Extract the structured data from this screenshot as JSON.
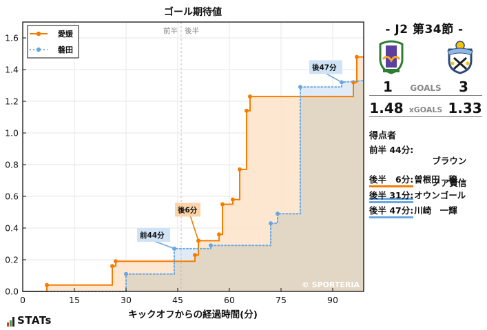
{
  "chart_data": {
    "type": "line",
    "step": true,
    "title": "ゴール期待値",
    "xlabel": "キックオフからの経過時間(分)",
    "ylabel": "",
    "xlim": [
      0,
      99
    ],
    "ylim": [
      0,
      1.7
    ],
    "xticks": [
      0,
      15,
      30,
      45,
      60,
      75,
      90
    ],
    "yticks": [
      0.0,
      0.2,
      0.4,
      0.6,
      0.8,
      1.0,
      1.2,
      1.4,
      1.6
    ],
    "grid": true,
    "legend_position": "upper left",
    "halftime_line": {
      "x": 46,
      "labels": [
        "前半",
        "後半"
      ]
    },
    "series": [
      {
        "name": "愛媛",
        "color": "#f57c00",
        "fill": "#fde3c8",
        "style": "solid",
        "points": [
          [
            7,
            0.04
          ],
          [
            26,
            0.16
          ],
          [
            27,
            0.19
          ],
          [
            50,
            0.23
          ],
          [
            51,
            0.32
          ],
          [
            57,
            0.36
          ],
          [
            58,
            0.55
          ],
          [
            61,
            0.58
          ],
          [
            63,
            0.77
          ],
          [
            65,
            1.14
          ],
          [
            66,
            1.23
          ],
          [
            96,
            1.32
          ],
          [
            97,
            1.48
          ]
        ],
        "final": 1.48
      },
      {
        "name": "磐田",
        "color": "#6aa7e0",
        "fill": "#dbe8f6",
        "style": "dotted",
        "points": [
          [
            30,
            0.11
          ],
          [
            44,
            0.27
          ],
          [
            54.6,
            0.29
          ],
          [
            72,
            0.43
          ],
          [
            74,
            0.49
          ],
          [
            80.6,
            1.29
          ],
          [
            92.6,
            1.32
          ]
        ],
        "final": 1.33
      }
    ],
    "annotations": [
      {
        "text": "前44分",
        "team": "磐田",
        "x": 44,
        "y": 0.27
      },
      {
        "text": "後6分",
        "team": "愛媛",
        "x": 51,
        "y": 0.32
      },
      {
        "text": "後47分",
        "team": "磐田",
        "x": 92.6,
        "y": 1.32
      }
    ],
    "watermark": "© SPORTERIA"
  },
  "match": {
    "round": "- J2 第34節 -",
    "home": {
      "name": "愛媛",
      "goals": "1",
      "xg": "1.48",
      "color": "#f57c00"
    },
    "away": {
      "name": "磐田",
      "goals": "3",
      "xg": "1.33",
      "color": "#6aa7e0"
    },
    "goals_label": "GOALS",
    "xg_label": "xGOALS"
  },
  "scorers": {
    "title": "得点者",
    "items": [
      {
        "time": "前半 44分:",
        "name": "ブラウン",
        "name2": "ノア賢信",
        "team": "away"
      },
      {
        "time": "後半   6分:",
        "name": "曽根田　穣",
        "team": "home"
      },
      {
        "time": "後半 31分:",
        "name": "オウンゴール",
        "team": "away"
      },
      {
        "time": "後半 47分:",
        "name": "川崎　一輝",
        "team": "away"
      }
    ]
  },
  "footer": {
    "brand": "STATs"
  }
}
